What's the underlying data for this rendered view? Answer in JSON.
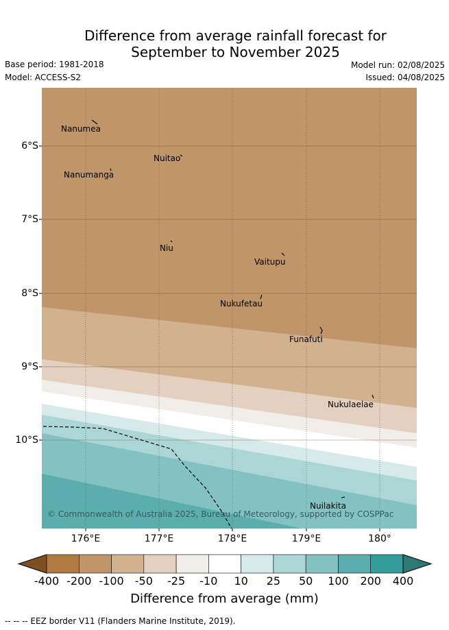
{
  "title_line1": "Difference from average rainfall forecast for",
  "title_line2": "September to November 2025",
  "base_period": "Base period: 1981-2018",
  "model": "Model: ACCESS-S2",
  "model_run": "Model run: 02/08/2025",
  "issued": "Issued: 04/08/2025",
  "copyright": "© Commonwealth of Australia 2025, Bureau of Meteorology, supported by COSPPac",
  "lat_labels": [
    "6°S",
    "7°S",
    "8°S",
    "9°S",
    "10°S"
  ],
  "lon_labels": [
    "176°E",
    "177°E",
    "178°E",
    "179°E",
    "180°"
  ],
  "islands": [
    "Nanumea",
    "Nuitao",
    "Nanumanga",
    "Niu",
    "Vaitupu",
    "Nukufetau",
    "Funafuti",
    "Nukulaelae",
    "Nuilakita"
  ],
  "colorbar": {
    "title": "Difference from average (mm)",
    "ticks": [
      "-400",
      "-200",
      "-100",
      "-50",
      "-25",
      "-10",
      "10",
      "25",
      "50",
      "100",
      "200",
      "400"
    ],
    "colors": [
      "#7f4f24",
      "#b07a43",
      "#c1956a",
      "#d2b18f",
      "#e3d0be",
      "#f1ede8",
      "#ffffff",
      "#d5eae9",
      "#acd6d5",
      "#84c2c1",
      "#5badae",
      "#349c9a",
      "#2e7875"
    ]
  },
  "footnote": "-- -- -- EEZ border V11 (Flanders Marine Institute, 2019)."
}
